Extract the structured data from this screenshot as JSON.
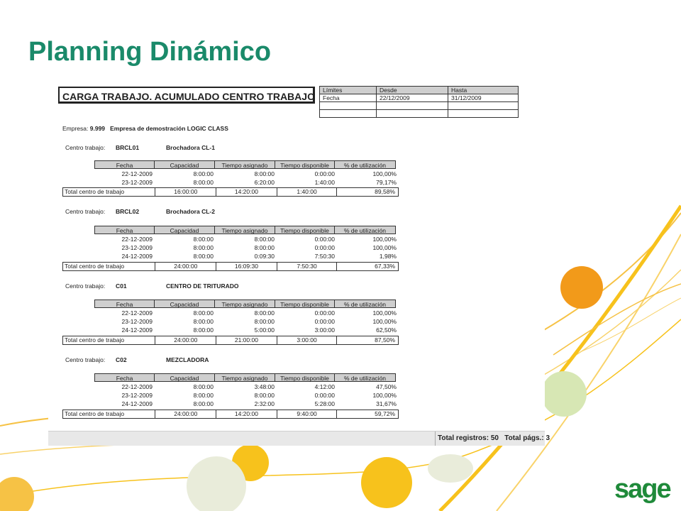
{
  "slide": {
    "title": "Planning Dinámico",
    "brand": "sage"
  },
  "report": {
    "title": "CARGA TRABAJO. ACUMULADO CENTRO TRABAJO",
    "limits": {
      "headers": [
        "Límites",
        "Desde",
        "Hasta"
      ],
      "row": [
        "Fecha",
        "22/12/2009",
        "31/12/2009"
      ]
    },
    "empresa": {
      "label": "Empresa:",
      "code": "9.999",
      "name": "Empresa de demostración LOGIC CLASS"
    },
    "columns": [
      "Fecha",
      "Capacidad",
      "Tiempo asignado",
      "Tiempo disponible",
      "% de utilización"
    ],
    "centro_label": "Centro trabajo:",
    "total_label": "Total centro de trabajo",
    "centros": [
      {
        "code": "BRCL01",
        "name": "Brochadora CL-1",
        "rows": [
          [
            "22-12-2009",
            "8:00:00",
            "8:00:00",
            "0:00:00",
            "100,00%"
          ],
          [
            "23-12-2009",
            "8:00:00",
            "6:20:00",
            "1:40:00",
            "79,17%"
          ]
        ],
        "total": [
          "16:00:00",
          "14:20:00",
          "1:40:00",
          "89,58%"
        ]
      },
      {
        "code": "BRCL02",
        "name": "Brochadora CL-2",
        "rows": [
          [
            "22-12-2009",
            "8:00:00",
            "8:00:00",
            "0:00:00",
            "100,00%"
          ],
          [
            "23-12-2009",
            "8:00:00",
            "8:00:00",
            "0:00:00",
            "100,00%"
          ],
          [
            "24-12-2009",
            "8:00:00",
            "0:09:30",
            "7:50:30",
            "1,98%"
          ]
        ],
        "total": [
          "24:00:00",
          "16:09:30",
          "7:50:30",
          "67,33%"
        ]
      },
      {
        "code": "C01",
        "name": "CENTRO DE TRITURADO",
        "rows": [
          [
            "22-12-2009",
            "8:00:00",
            "8:00:00",
            "0:00:00",
            "100,00%"
          ],
          [
            "23-12-2009",
            "8:00:00",
            "8:00:00",
            "0:00:00",
            "100,00%"
          ],
          [
            "24-12-2009",
            "8:00:00",
            "5:00:00",
            "3:00:00",
            "62,50%"
          ]
        ],
        "total": [
          "24:00:00",
          "21:00:00",
          "3:00:00",
          "87,50%"
        ]
      },
      {
        "code": "C02",
        "name": "MEZCLADORA",
        "rows": [
          [
            "22-12-2009",
            "8:00:00",
            "3:48:00",
            "4:12:00",
            "47,50%"
          ],
          [
            "23-12-2009",
            "8:00:00",
            "8:00:00",
            "0:00:00",
            "100,00%"
          ],
          [
            "24-12-2009",
            "8:00:00",
            "2:32:00",
            "5:28:00",
            "31,67%"
          ]
        ],
        "total": [
          "24:00:00",
          "14:20:00",
          "9:40:00",
          "59,72%"
        ]
      }
    ],
    "footer": {
      "registros": "Total registros: 50",
      "paginas": "Total págs.: 3"
    }
  },
  "colors": {
    "title_green": "#1a8a6a",
    "brand_green": "#1f8a3a",
    "accent_orange": "#f29a1a",
    "accent_yellow": "#f7c21c",
    "accent_light_green": "#d7e7b4"
  }
}
